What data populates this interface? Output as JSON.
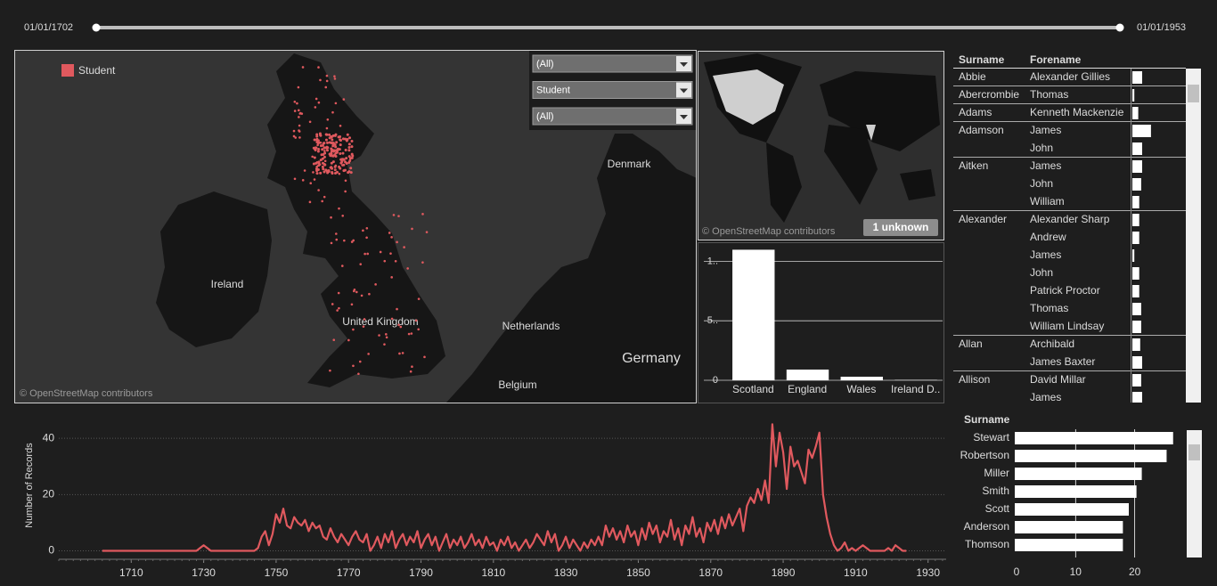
{
  "slider": {
    "start": "01/01/1702",
    "end": "01/01/1953"
  },
  "map": {
    "legend": "Student",
    "labels": [
      "Denmark",
      "Ireland",
      "United Kingdom",
      "Netherlands",
      "Germany",
      "Belgium"
    ],
    "attribution": "© OpenStreetMap contributors"
  },
  "filters": [
    "(All)",
    "Student",
    "(All)"
  ],
  "world_map": {
    "attribution": "© OpenStreetMap contributors",
    "badge": "1 unknown"
  },
  "table": {
    "headers": [
      "Surname",
      "Forename"
    ],
    "groups": [
      {
        "surname": "Abbie",
        "rows": [
          {
            "forename": "Alexander Gillies",
            "value": 1
          }
        ]
      },
      {
        "surname": "Abercrombie",
        "rows": [
          {
            "forename": "Thomas",
            "value": 0.2
          }
        ]
      },
      {
        "surname": "Adams",
        "rows": [
          {
            "forename": "Kenneth Mackenzie",
            "value": 0.6
          }
        ]
      },
      {
        "surname": "Adamson",
        "rows": [
          {
            "forename": "James",
            "value": 1.9
          },
          {
            "forename": "John",
            "value": 1
          }
        ]
      },
      {
        "surname": "Aitken",
        "rows": [
          {
            "forename": "James",
            "value": 1
          },
          {
            "forename": "John",
            "value": 0.9
          },
          {
            "forename": "William",
            "value": 0.7
          }
        ]
      },
      {
        "surname": "Alexander",
        "rows": [
          {
            "forename": "Alexander Sharp",
            "value": 0.7
          },
          {
            "forename": "Andrew",
            "value": 0.7
          },
          {
            "forename": "James",
            "value": 0.2
          },
          {
            "forename": "John",
            "value": 0.7
          },
          {
            "forename": "Patrick Proctor",
            "value": 0.7
          },
          {
            "forename": "Thomas",
            "value": 0.9
          },
          {
            "forename": "William Lindsay",
            "value": 0.9
          }
        ]
      },
      {
        "surname": "Allan",
        "rows": [
          {
            "forename": "Archibald",
            "value": 0.8
          },
          {
            "forename": "James Baxter",
            "value": 1
          }
        ]
      },
      {
        "surname": "Allison",
        "rows": [
          {
            "forename": "David Millar",
            "value": 0.9
          },
          {
            "forename": "James",
            "value": 1
          }
        ]
      }
    ]
  },
  "chart_data": [
    {
      "type": "bar",
      "categories": [
        "Scotland",
        "England",
        "Wales",
        "Ireland D.."
      ],
      "values": [
        1097,
        90,
        30,
        3
      ],
      "color": "#ffffff",
      "ylim": [
        0,
        1100
      ],
      "yticks": [
        {
          "value": 1000,
          "label": "1.."
        },
        {
          "value": 500,
          "label": "5.."
        },
        0
      ],
      "grid": true
    },
    {
      "type": "line",
      "y_label": "Number of Records",
      "x": [
        1702,
        1703,
        1704,
        1705,
        1706,
        1707,
        1708,
        1709,
        1710,
        1711,
        1712,
        1713,
        1714,
        1715,
        1716,
        1717,
        1718,
        1719,
        1720,
        1721,
        1722,
        1723,
        1724,
        1725,
        1726,
        1727,
        1728,
        1729,
        1730,
        1731,
        1732,
        1733,
        1734,
        1735,
        1736,
        1737,
        1738,
        1739,
        1740,
        1741,
        1742,
        1743,
        1744,
        1745,
        1746,
        1747,
        1748,
        1749,
        1750,
        1751,
        1752,
        1753,
        1754,
        1755,
        1756,
        1757,
        1758,
        1759,
        1760,
        1761,
        1762,
        1763,
        1764,
        1765,
        1766,
        1767,
        1768,
        1769,
        1770,
        1771,
        1772,
        1773,
        1774,
        1775,
        1776,
        1777,
        1778,
        1779,
        1780,
        1781,
        1782,
        1783,
        1784,
        1785,
        1786,
        1787,
        1788,
        1789,
        1790,
        1791,
        1792,
        1793,
        1794,
        1795,
        1796,
        1797,
        1798,
        1799,
        1800,
        1801,
        1802,
        1803,
        1804,
        1805,
        1806,
        1807,
        1808,
        1809,
        1810,
        1811,
        1812,
        1813,
        1814,
        1815,
        1816,
        1817,
        1818,
        1819,
        1820,
        1821,
        1822,
        1823,
        1824,
        1825,
        1826,
        1827,
        1828,
        1829,
        1830,
        1831,
        1832,
        1833,
        1834,
        1835,
        1836,
        1837,
        1838,
        1839,
        1840,
        1841,
        1842,
        1843,
        1844,
        1845,
        1846,
        1847,
        1848,
        1849,
        1850,
        1851,
        1852,
        1853,
        1854,
        1855,
        1856,
        1857,
        1858,
        1859,
        1860,
        1861,
        1862,
        1863,
        1864,
        1865,
        1866,
        1867,
        1868,
        1869,
        1870,
        1871,
        1872,
        1873,
        1874,
        1875,
        1876,
        1877,
        1878,
        1879,
        1880,
        1881,
        1882,
        1883,
        1884,
        1885,
        1886,
        1887,
        1888,
        1889,
        1890,
        1891,
        1892,
        1893,
        1894,
        1895,
        1896,
        1897,
        1898,
        1899,
        1900,
        1901,
        1902,
        1903,
        1904,
        1905,
        1906,
        1907,
        1908,
        1909,
        1910,
        1911,
        1912,
        1913,
        1914,
        1915,
        1916,
        1917,
        1918,
        1919,
        1920,
        1921,
        1922,
        1923,
        1924
      ],
      "series": [
        {
          "name": "Student",
          "color": "#e0595e",
          "values": [
            0,
            0,
            0,
            0,
            0,
            0,
            0,
            0,
            0,
            0,
            0,
            0,
            0,
            0,
            0,
            0,
            0,
            0,
            0,
            0,
            0,
            0,
            0,
            0,
            0,
            0,
            0,
            1,
            2,
            1,
            0,
            0,
            0,
            0,
            0,
            0,
            0,
            0,
            0,
            0,
            0,
            0,
            0,
            1,
            5,
            7,
            2,
            6,
            13,
            10,
            15,
            9,
            8,
            12,
            10,
            9,
            11,
            7,
            10,
            8,
            9,
            5,
            4,
            8,
            5,
            3,
            6,
            4,
            2,
            5,
            7,
            4,
            3,
            6,
            0,
            2,
            5,
            1,
            6,
            3,
            7,
            1,
            4,
            6,
            2,
            5,
            3,
            7,
            1,
            4,
            6,
            2,
            5,
            0,
            3,
            6,
            1,
            4,
            2,
            5,
            1,
            3,
            6,
            2,
            4,
            1,
            5,
            2,
            3,
            0,
            4,
            2,
            5,
            1,
            3,
            0,
            2,
            4,
            1,
            3,
            6,
            4,
            2,
            7,
            3,
            6,
            0,
            2,
            5,
            1,
            4,
            2,
            0,
            3,
            1,
            4,
            2,
            5,
            2,
            9,
            5,
            8,
            4,
            7,
            3,
            9,
            5,
            7,
            2,
            8,
            4,
            10,
            6,
            9,
            3,
            7,
            5,
            11,
            4,
            8,
            2,
            9,
            6,
            12,
            5,
            8,
            3,
            10,
            7,
            11,
            6,
            12,
            8,
            13,
            9,
            12,
            15,
            7,
            16,
            19,
            17,
            22,
            18,
            25,
            17,
            45,
            30,
            42,
            35,
            22,
            37,
            30,
            32,
            28,
            24,
            36,
            33,
            37,
            42,
            20,
            12,
            6,
            2,
            0,
            1,
            3,
            0,
            1,
            0,
            1,
            2,
            1,
            0,
            0,
            0,
            0,
            0,
            1,
            0,
            2,
            1,
            0,
            0
          ]
        }
      ],
      "xlim": [
        1690,
        1935
      ],
      "xticks": [
        1710,
        1730,
        1750,
        1770,
        1790,
        1810,
        1830,
        1850,
        1870,
        1890,
        1910,
        1930
      ],
      "ylim": [
        -3,
        47
      ],
      "yticks": [
        0,
        20,
        40
      ],
      "grid": true
    },
    {
      "type": "hbar",
      "header": "Surname",
      "categories": [
        "Stewart",
        "Robertson",
        "Miller",
        "Smith",
        "Scott",
        "Anderson",
        "Thomson"
      ],
      "values": [
        26.5,
        25.4,
        21.2,
        20.3,
        19,
        18,
        18
      ],
      "color": "#ffffff",
      "xlim": [
        0,
        28.5
      ],
      "xticks": [
        0,
        10,
        20
      ],
      "grid": true
    }
  ]
}
